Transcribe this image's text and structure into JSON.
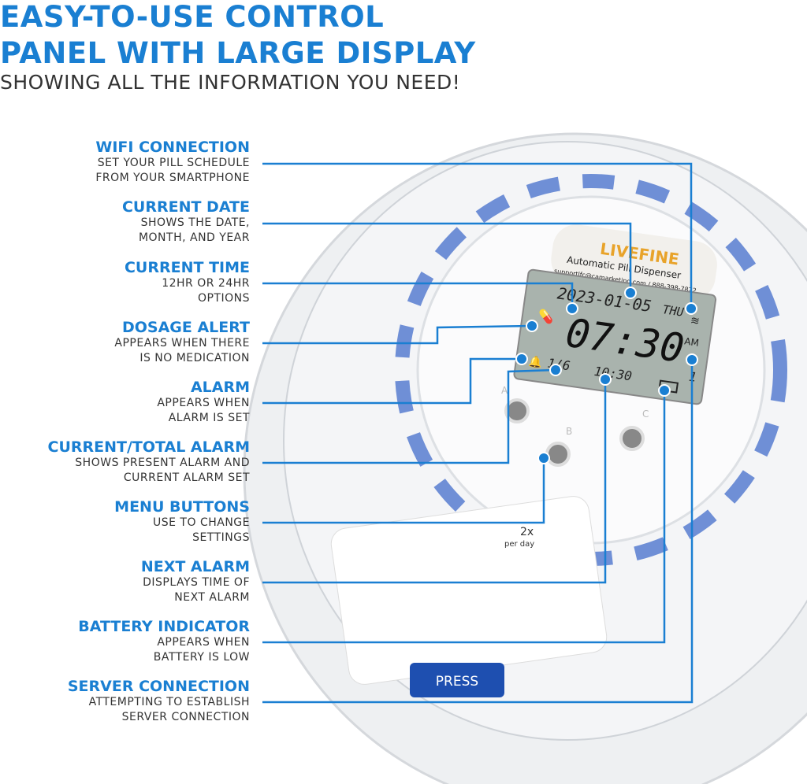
{
  "heading": {
    "line1": "EASY-TO-USE CONTROL",
    "line2": "PANEL WITH LARGE DISPLAY",
    "subtitle": "SHOWING ALL THE INFORMATION YOU NEED!"
  },
  "callouts": [
    {
      "title": "WIFI CONNECTION",
      "lines": [
        "SET YOUR PILL SCHEDULE",
        "FROM YOUR SMARTPHONE"
      ]
    },
    {
      "title": "CURRENT DATE",
      "lines": [
        "SHOWS THE DATE,",
        "MONTH, AND YEAR"
      ]
    },
    {
      "title": "CURRENT TIME",
      "lines": [
        "12HR OR 24HR",
        "OPTIONS"
      ]
    },
    {
      "title": "DOSAGE ALERT",
      "lines": [
        "APPEARS WHEN THERE",
        "IS NO MEDICATION"
      ]
    },
    {
      "title": "ALARM",
      "lines": [
        "APPEARS WHEN",
        "ALARM IS SET"
      ]
    },
    {
      "title": "CURRENT/TOTAL ALARM",
      "lines": [
        "SHOWS PRESENT ALARM AND",
        "CURRENT ALARM SET"
      ]
    },
    {
      "title": "MENU BUTTONS",
      "lines": [
        "USE TO CHANGE",
        "SETTINGS"
      ]
    },
    {
      "title": "NEXT ALARM",
      "lines": [
        "DISPLAYS TIME OF",
        "NEXT ALARM"
      ]
    },
    {
      "title": "BATTERY INDICATOR",
      "lines": [
        "APPEARS WHEN",
        "BATTERY IS LOW"
      ]
    },
    {
      "title": "SERVER CONNECTION",
      "lines": [
        "ATTEMPTING TO ESTABLISH",
        "SERVER CONNECTION"
      ]
    }
  ],
  "device": {
    "brand": "LIVEFINE",
    "product": "Automatic Pill Dispenser",
    "support": "supportlfc@camarketing.com / 888-398-7822",
    "lcd": {
      "date": "2023-01-05",
      "day": "THU",
      "time": "07:30",
      "ampm": "AM",
      "alarm_count": "1/6",
      "next_alarm": "10:30",
      "server": "1"
    },
    "buttons": [
      "A",
      "B",
      "C"
    ],
    "dose_label": "2x",
    "dose_sub": "per day",
    "press_label": "PRESS"
  },
  "colors": {
    "accent": "#1a7fd2",
    "lcd": "#a9b3ad",
    "ring": "#6f8fd6"
  }
}
